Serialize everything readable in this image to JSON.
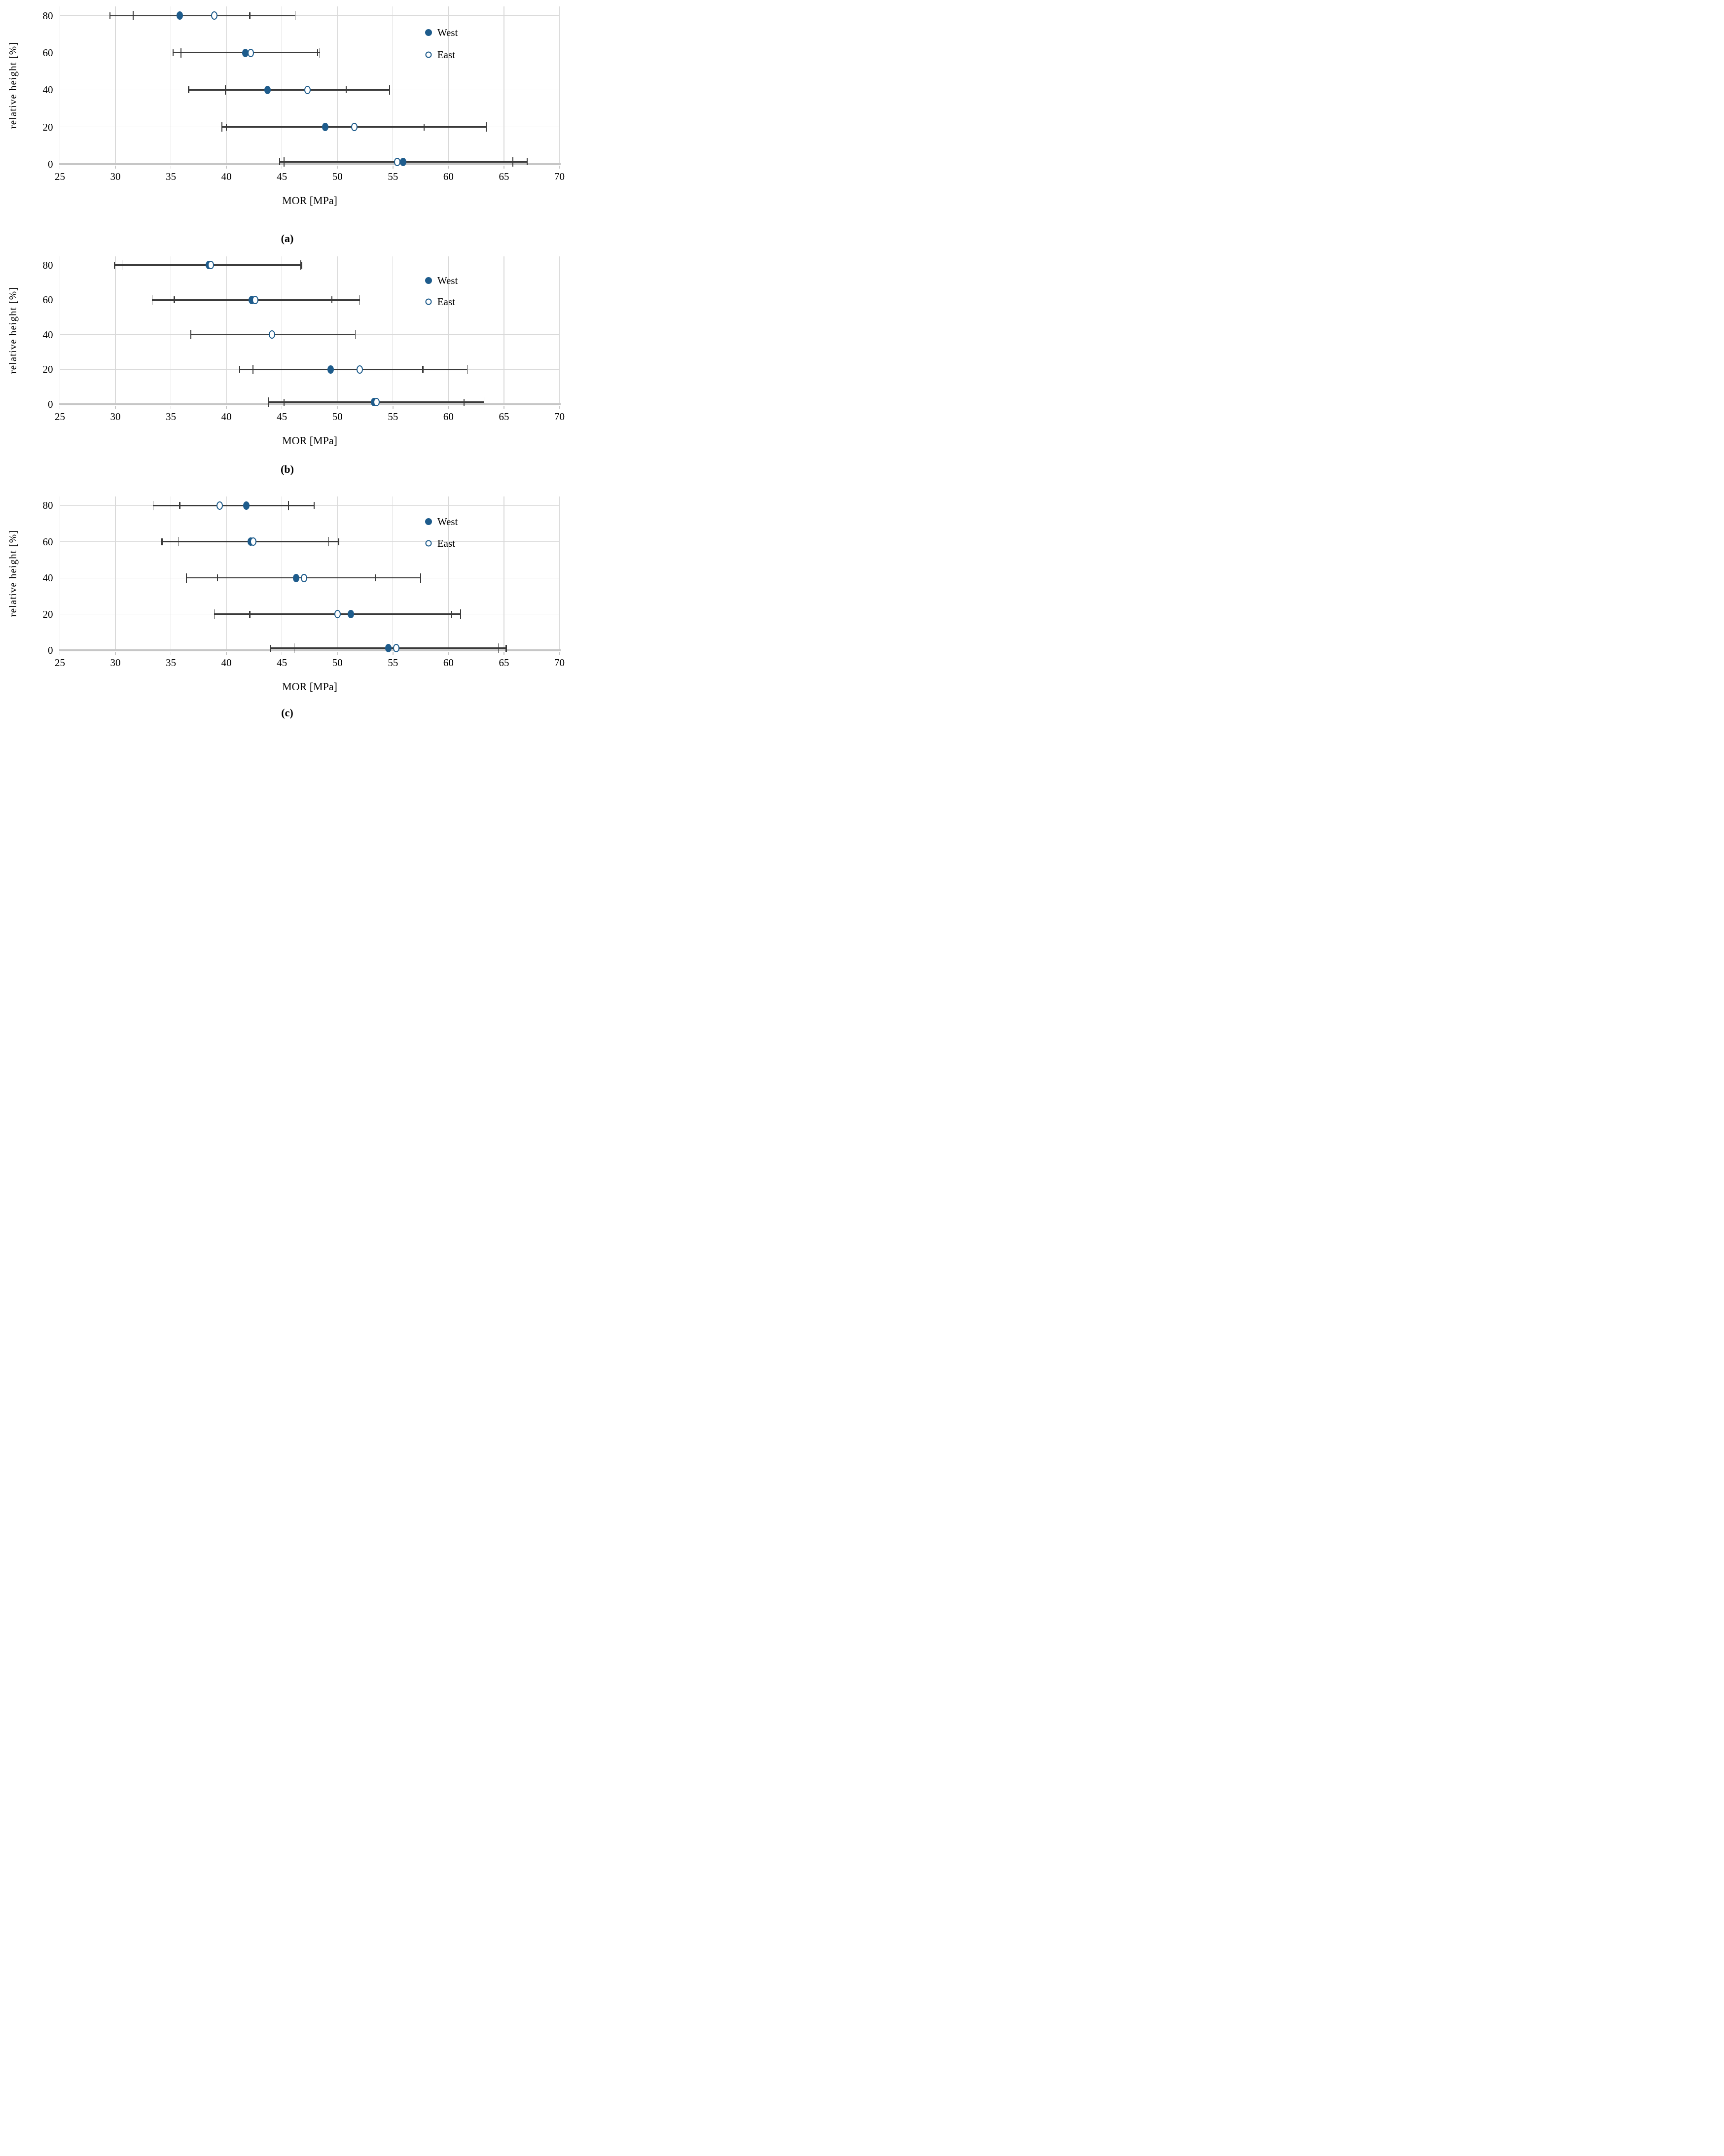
{
  "colors": {
    "marker_blue": "#1e5c8c",
    "error_bar": "#3a3a3a",
    "gridline": "#d9d9d9",
    "axis_line": "#c6c6c6",
    "text": "#000000",
    "background": "#ffffff"
  },
  "chart_data": [
    {
      "type": "scatter",
      "caption": "(a)",
      "xlabel": "MOR [MPa]",
      "ylabel": "relative height [%]",
      "xlim": [
        25,
        70
      ],
      "ylim": [
        0,
        85
      ],
      "x_ticks": [
        25,
        30,
        35,
        40,
        45,
        50,
        55,
        60,
        65,
        70
      ],
      "y_ticks": [
        0,
        20,
        40,
        60,
        80
      ],
      "grid": true,
      "legend_position": "top-right-inside",
      "legend": [
        {
          "label": "West",
          "marker": "filled"
        },
        {
          "label": "East",
          "marker": "open"
        }
      ],
      "series": [
        {
          "name": "West",
          "marker": "filled",
          "points": [
            {
              "height": 80,
              "mor": 35.8,
              "err_lo": 29.5,
              "err_hi": 42.1
            },
            {
              "height": 60,
              "mor": 41.7,
              "err_lo": 35.2,
              "err_hi": 48.2
            },
            {
              "height": 40,
              "mor": 43.7,
              "err_lo": 36.6,
              "err_hi": 50.8
            },
            {
              "height": 20,
              "mor": 48.9,
              "err_lo": 40.0,
              "err_hi": 57.8
            },
            {
              "height": 0,
              "mor": 55.9,
              "err_lo": 44.8,
              "err_hi": 67.1
            }
          ]
        },
        {
          "name": "East",
          "marker": "open",
          "points": [
            {
              "height": 80,
              "mor": 38.9,
              "err_lo": 31.6,
              "err_hi": 46.2
            },
            {
              "height": 60,
              "mor": 42.2,
              "err_lo": 35.9,
              "err_hi": 48.4
            },
            {
              "height": 40,
              "mor": 47.3,
              "err_lo": 39.9,
              "err_hi": 54.7
            },
            {
              "height": 20,
              "mor": 51.5,
              "err_lo": 39.6,
              "err_hi": 63.4
            },
            {
              "height": 0,
              "mor": 55.4,
              "err_lo": 45.2,
              "err_hi": 65.8
            }
          ]
        }
      ]
    },
    {
      "type": "scatter",
      "caption": "(b)",
      "xlabel": "MOR [MPa]",
      "ylabel": "relative height [%]",
      "xlim": [
        25,
        70
      ],
      "ylim": [
        0,
        85
      ],
      "x_ticks": [
        25,
        30,
        35,
        40,
        45,
        50,
        55,
        60,
        65,
        70
      ],
      "y_ticks": [
        0,
        20,
        40,
        60,
        80
      ],
      "grid": true,
      "legend_position": "top-right-inside",
      "legend": [
        {
          "label": "West",
          "marker": "filled"
        },
        {
          "label": "East",
          "marker": "open"
        }
      ],
      "series": [
        {
          "name": "West",
          "marker": "filled",
          "points": [
            {
              "height": 80,
              "mor": 38.4,
              "err_lo": 29.9,
              "err_hi": 46.8
            },
            {
              "height": 60,
              "mor": 42.3,
              "err_lo": 35.3,
              "err_hi": 49.5
            },
            {
              "height": 20,
              "mor": 49.4,
              "err_lo": 41.2,
              "err_hi": 57.7
            },
            {
              "height": 0,
              "mor": 53.3,
              "err_lo": 45.2,
              "err_hi": 61.4
            }
          ]
        },
        {
          "name": "East",
          "marker": "open",
          "points": [
            {
              "height": 80,
              "mor": 38.6,
              "err_lo": 30.6,
              "err_hi": 46.7
            },
            {
              "height": 60,
              "mor": 42.6,
              "err_lo": 33.3,
              "err_hi": 52.0
            },
            {
              "height": 40,
              "mor": 44.1,
              "err_lo": 36.8,
              "err_hi": 51.6
            },
            {
              "height": 20,
              "mor": 52.0,
              "err_lo": 42.4,
              "err_hi": 61.7
            },
            {
              "height": 0,
              "mor": 53.5,
              "err_lo": 43.8,
              "err_hi": 63.2
            }
          ]
        }
      ]
    },
    {
      "type": "scatter",
      "caption": "(c)",
      "xlabel": "MOR [MPa]",
      "ylabel": "relative height [%]",
      "xlim": [
        25,
        70
      ],
      "ylim": [
        0,
        85
      ],
      "x_ticks": [
        25,
        30,
        35,
        40,
        45,
        50,
        55,
        60,
        65,
        70
      ],
      "y_ticks": [
        0,
        20,
        40,
        60,
        80
      ],
      "grid": true,
      "legend_position": "top-right-inside",
      "legend": [
        {
          "label": "West",
          "marker": "filled"
        },
        {
          "label": "East",
          "marker": "open"
        }
      ],
      "series": [
        {
          "name": "West",
          "marker": "filled",
          "points": [
            {
              "height": 80,
              "mor": 41.8,
              "err_lo": 35.8,
              "err_hi": 47.9
            },
            {
              "height": 60,
              "mor": 42.2,
              "err_lo": 34.2,
              "err_hi": 50.1
            },
            {
              "height": 40,
              "mor": 46.3,
              "err_lo": 39.2,
              "err_hi": 53.4
            },
            {
              "height": 20,
              "mor": 51.2,
              "err_lo": 42.1,
              "err_hi": 60.3
            },
            {
              "height": 0,
              "mor": 54.6,
              "err_lo": 44.0,
              "err_hi": 65.2
            }
          ]
        },
        {
          "name": "East",
          "marker": "open",
          "points": [
            {
              "height": 80,
              "mor": 39.4,
              "err_lo": 33.4,
              "err_hi": 45.6
            },
            {
              "height": 60,
              "mor": 42.4,
              "err_lo": 35.7,
              "err_hi": 49.2
            },
            {
              "height": 40,
              "mor": 47.0,
              "err_lo": 36.4,
              "err_hi": 57.5
            },
            {
              "height": 20,
              "mor": 50.0,
              "err_lo": 38.9,
              "err_hi": 61.1
            },
            {
              "height": 0,
              "mor": 55.3,
              "err_lo": 46.1,
              "err_hi": 64.5
            }
          ]
        }
      ]
    }
  ]
}
